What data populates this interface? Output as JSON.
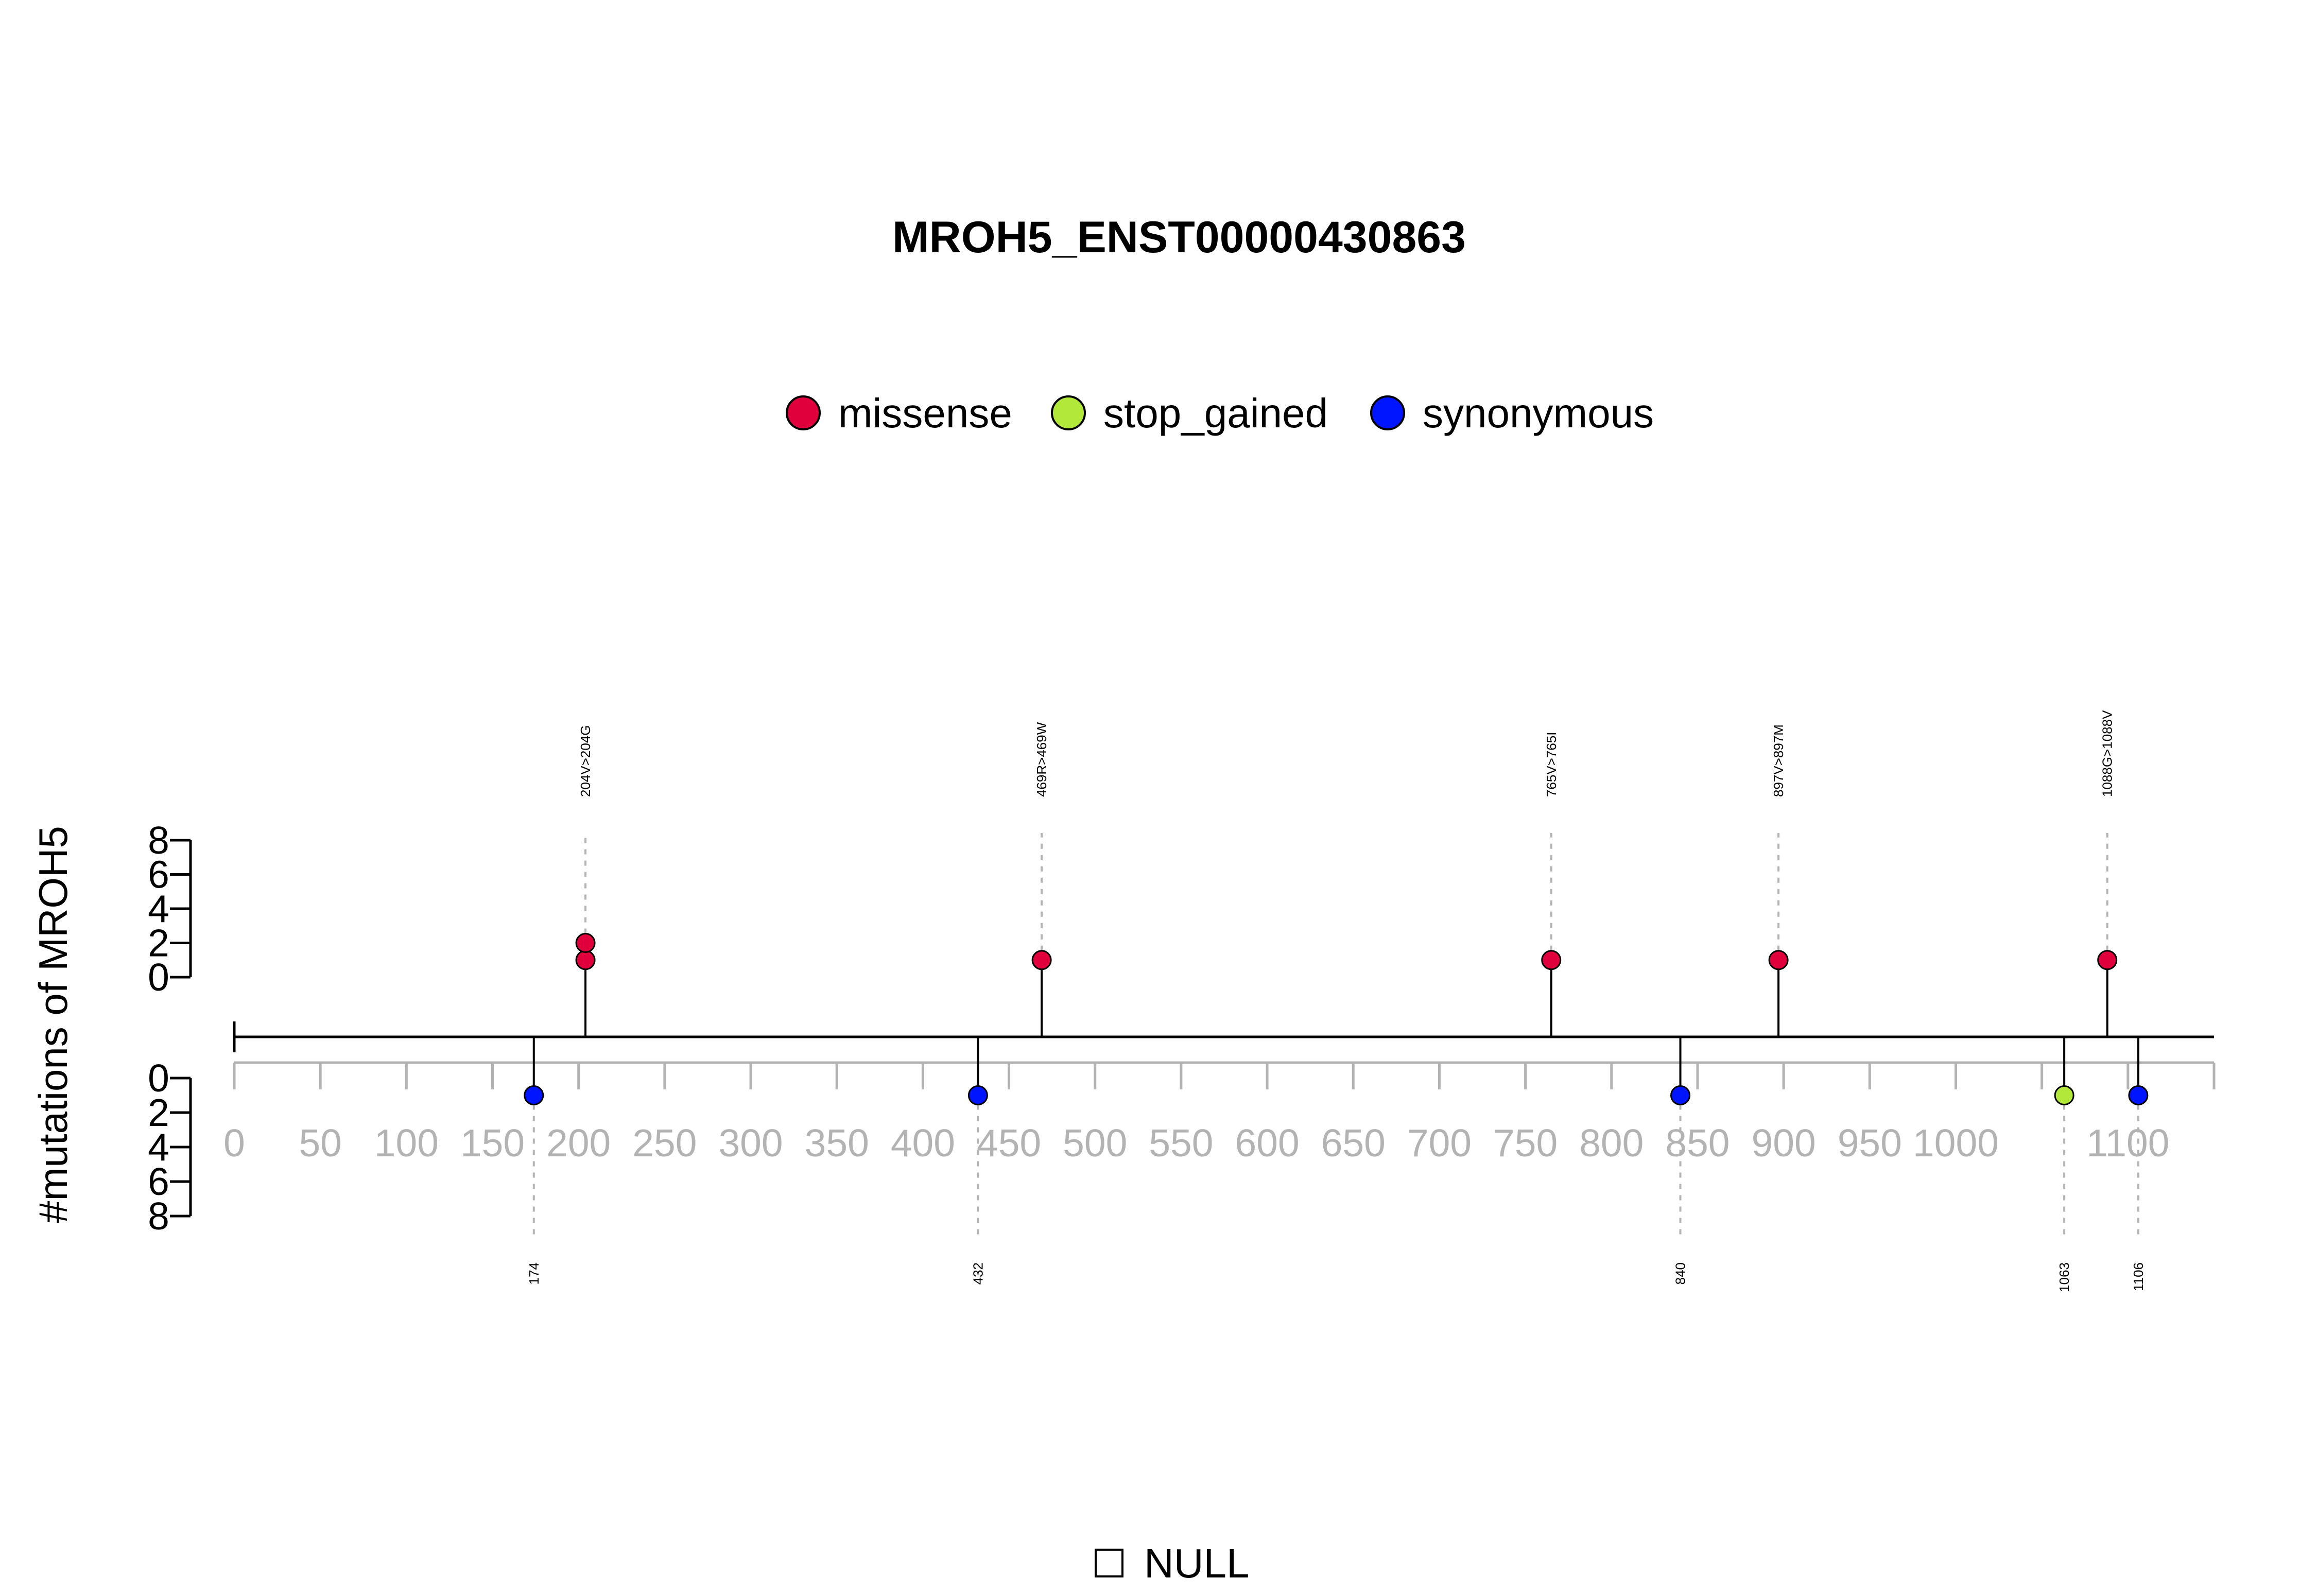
{
  "chart_data": {
    "type": "lollipop",
    "title": "MROH5_ENST00000430863",
    "ylabel": "#mutations of MROH5",
    "legend": {
      "placement": "top-center",
      "entries": [
        {
          "name": "missense",
          "color": "#e0003c"
        },
        {
          "name": "stop_gained",
          "color": "#b2e83a"
        },
        {
          "name": "synonymous",
          "color": "#0015ff"
        }
      ]
    },
    "x_axis": {
      "range": [
        0,
        1150
      ],
      "ticks": [
        0,
        50,
        100,
        150,
        200,
        250,
        300,
        350,
        400,
        450,
        500,
        550,
        600,
        650,
        700,
        750,
        800,
        850,
        900,
        950,
        1000,
        1050,
        1100,
        1150
      ],
      "tick_labels": [
        "0",
        "50",
        "100",
        "150",
        "200",
        "250",
        "300",
        "350",
        "400",
        "450",
        "500",
        "550",
        "600",
        "650",
        "700",
        "750",
        "800",
        "850",
        "900",
        "950",
        "1000",
        "",
        "1100",
        ""
      ]
    },
    "y_axis_top": {
      "range": [
        0,
        8
      ],
      "ticks": [
        0,
        2,
        4,
        6,
        8
      ],
      "tick_labels": [
        "0",
        "2",
        "4",
        "6",
        "8"
      ]
    },
    "y_axis_bottom": {
      "range": [
        0,
        8
      ],
      "ticks": [
        0,
        2,
        4,
        6,
        8
      ],
      "tick_labels": [
        "0",
        "2",
        "4",
        "6",
        "8"
      ]
    },
    "mutations_top": [
      {
        "position": 204,
        "count": 2,
        "label": "204V>204G",
        "type": "missense"
      },
      {
        "position": 469,
        "count": 1,
        "label": "469R>469W",
        "type": "missense"
      },
      {
        "position": 765,
        "count": 1,
        "label": "765V>765I",
        "type": "missense"
      },
      {
        "position": 897,
        "count": 1,
        "label": "897V>897M",
        "type": "missense"
      },
      {
        "position": 1088,
        "count": 1,
        "label": "1088G>1088V",
        "type": "missense"
      }
    ],
    "mutations_bottom": [
      {
        "position": 174,
        "count": 1,
        "label": "174",
        "type": "synonymous"
      },
      {
        "position": 432,
        "count": 1,
        "label": "432",
        "type": "synonymous"
      },
      {
        "position": 840,
        "count": 1,
        "label": "840",
        "type": "synonymous"
      },
      {
        "position": 1063,
        "count": 1,
        "label": "1063",
        "type": "stop_gained"
      },
      {
        "position": 1106,
        "count": 1,
        "label": "1106",
        "type": "synonymous"
      }
    ],
    "domain_legend": [
      {
        "name": "NULL"
      }
    ]
  }
}
